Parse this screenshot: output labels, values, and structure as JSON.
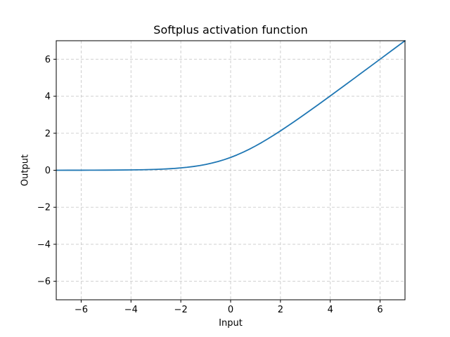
{
  "figure": {
    "title": "Softplus activation function",
    "xlabel": "Input",
    "ylabel": "Output"
  },
  "colors": {
    "line": "#1f77b4",
    "grid": "#c9c9c9",
    "spine": "#000000",
    "tick": "#000000",
    "text": "#000000",
    "background": "#ffffff"
  },
  "chart_data": {
    "type": "line",
    "title": "Softplus activation function",
    "xlabel": "Input",
    "ylabel": "Output",
    "xlim": [
      -7,
      7
    ],
    "ylim": [
      -7,
      7
    ],
    "xticks": [
      -6,
      -4,
      -2,
      0,
      2,
      4,
      6
    ],
    "yticks": [
      -6,
      -4,
      -2,
      0,
      2,
      4,
      6
    ],
    "xtick_labels": [
      "−6",
      "−4",
      "−2",
      "0",
      "2",
      "4",
      "6"
    ],
    "ytick_labels": [
      "−6",
      "−4",
      "−2",
      "0",
      "2",
      "4",
      "6"
    ],
    "grid": true,
    "grid_style": "dashed",
    "legend": false,
    "series": [
      {
        "name": "softplus",
        "color": "#1f77b4",
        "x": [
          -7,
          -6.5,
          -6,
          -5.5,
          -5,
          -4.5,
          -4,
          -3.5,
          -3,
          -2.75,
          -2.5,
          -2.25,
          -2,
          -1.75,
          -1.5,
          -1.25,
          -1,
          -0.75,
          -0.5,
          -0.25,
          0,
          0.25,
          0.5,
          0.75,
          1,
          1.25,
          1.5,
          1.75,
          2,
          2.25,
          2.5,
          2.75,
          3,
          3.5,
          4,
          4.5,
          5,
          5.5,
          6,
          6.5,
          7
        ],
        "y": [
          0.0009,
          0.0015,
          0.0025,
          0.0041,
          0.0067,
          0.011,
          0.0182,
          0.0297,
          0.0486,
          0.062,
          0.0789,
          0.1002,
          0.1269,
          0.1602,
          0.2014,
          0.2519,
          0.3133,
          0.3869,
          0.4741,
          0.5759,
          0.6931,
          0.8259,
          0.9741,
          1.1369,
          1.3133,
          1.5019,
          1.7014,
          1.9102,
          2.1269,
          2.3502,
          2.5789,
          2.812,
          3.0486,
          3.5297,
          4.0182,
          4.511,
          5.0067,
          5.5041,
          6.0025,
          6.5015,
          7.0009
        ]
      }
    ]
  }
}
